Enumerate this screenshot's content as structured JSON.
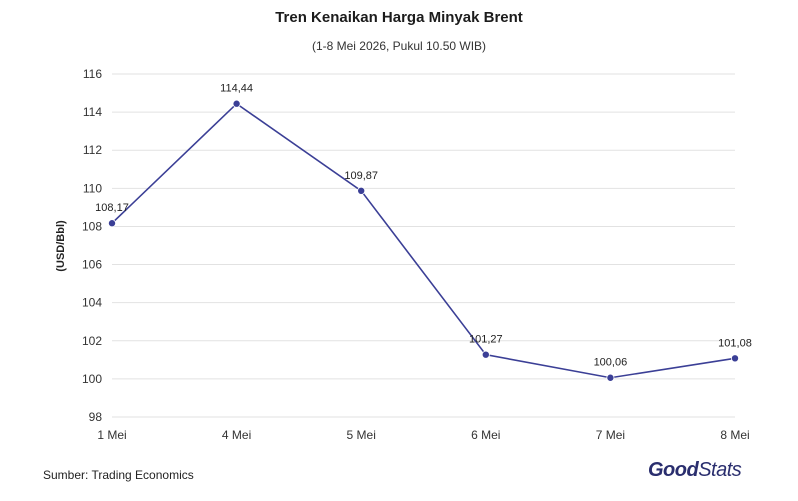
{
  "chart_data": {
    "type": "line",
    "title": "Tren Kenaikan Harga Minyak Brent",
    "subtitle": "(1-8 Mei 2026, Pukul 10.50 WIB)",
    "ylabel": "(USD/Bbl)",
    "categories": [
      "1 Mei",
      "4 Mei",
      "5 Mei",
      "6 Mei",
      "7 Mei",
      "8 Mei"
    ],
    "values": [
      108.17,
      114.44,
      109.87,
      101.27,
      100.06,
      101.08
    ],
    "value_labels": [
      "108,17",
      "114,44",
      "109,87",
      "101,27",
      "100,06",
      "101,08"
    ],
    "ylim": [
      98,
      116
    ],
    "yticks": [
      98,
      100,
      102,
      104,
      106,
      108,
      110,
      112,
      114,
      116
    ],
    "grid": true,
    "line_color": "#3b3f96"
  },
  "footer": {
    "source": "Sumber: Trading Economics",
    "brand_part1": "Good",
    "brand_part2": "Stats"
  }
}
